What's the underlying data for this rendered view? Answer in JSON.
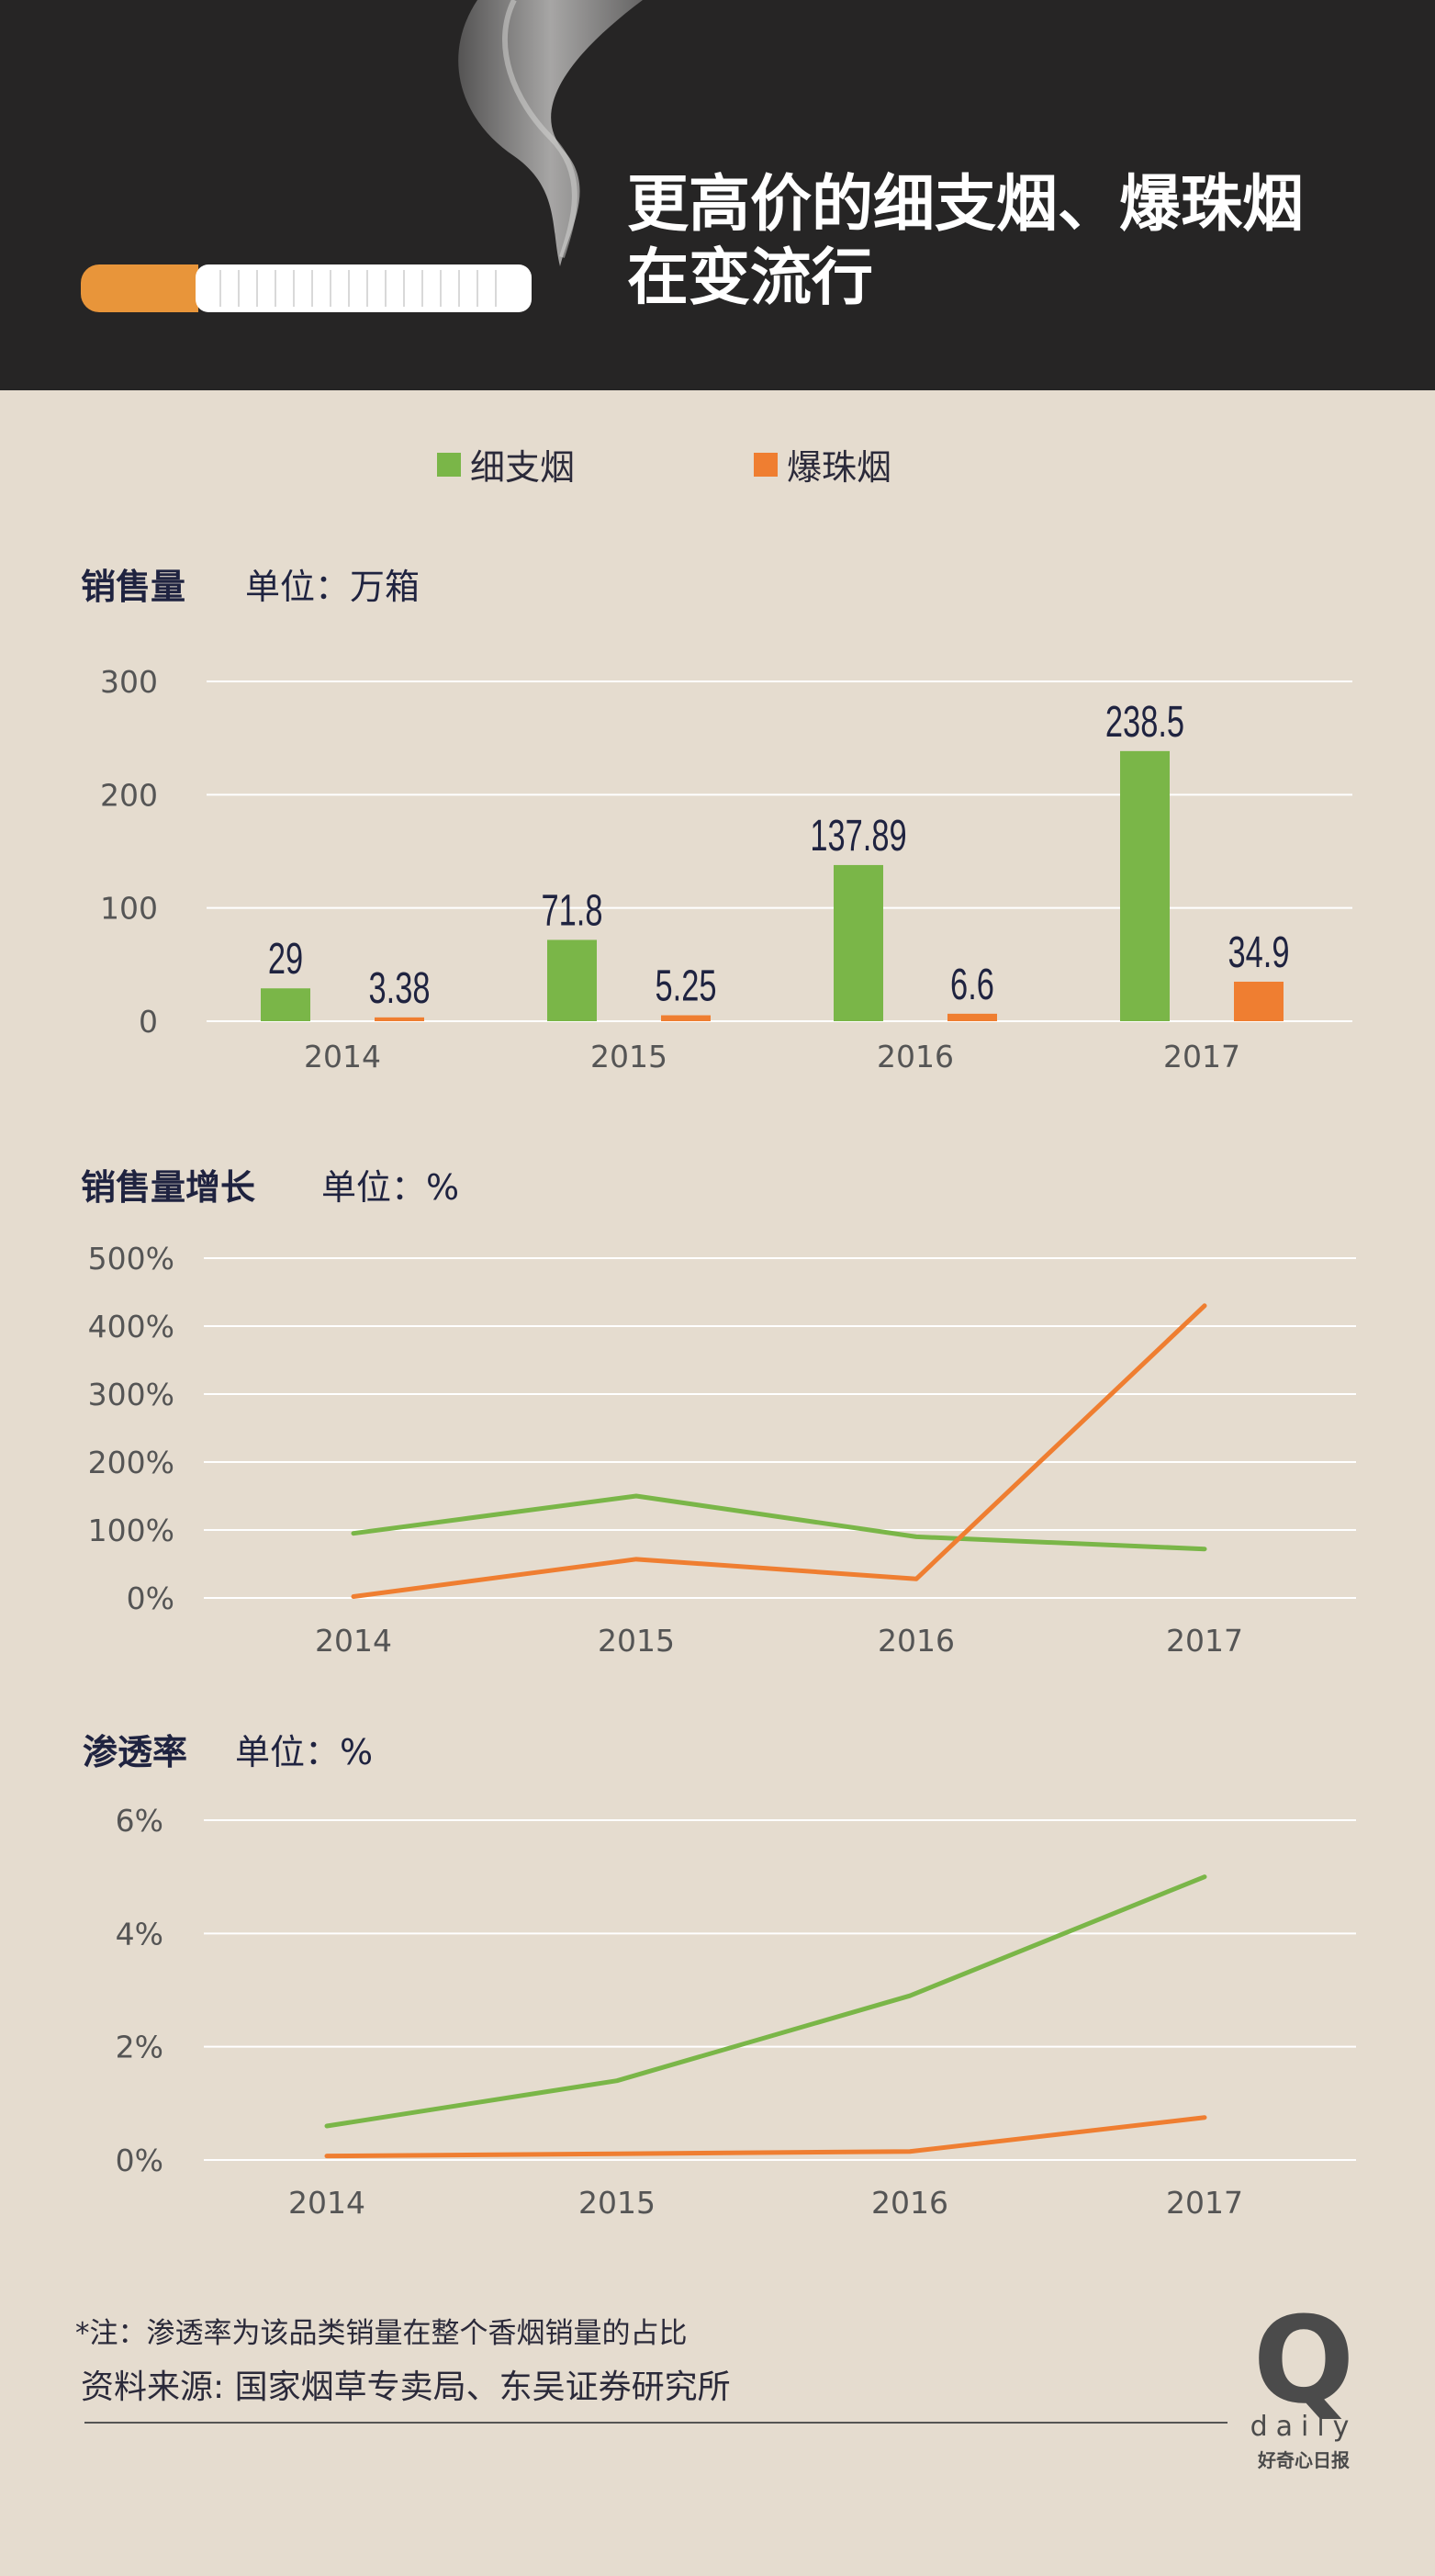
{
  "header": {
    "title_lines": [
      "更高价的细支烟、爆珠烟",
      "在变流行"
    ]
  },
  "legend": [
    {
      "label": "细支烟",
      "color": "#7ab648"
    },
    {
      "label": "爆珠烟",
      "color": "#ef7e31"
    }
  ],
  "sections": {
    "sales": {
      "title": "销售量",
      "unit": "单位：万箱"
    },
    "growth": {
      "title": "销售量增长",
      "unit": "单位：%"
    },
    "penetration": {
      "title": "渗透率",
      "unit": "单位：%"
    }
  },
  "chart_data": [
    {
      "type": "bar",
      "title": "销售量",
      "unit": "单位：万箱",
      "categories": [
        "2014",
        "2015",
        "2016",
        "2017"
      ],
      "ylim": [
        0,
        300
      ],
      "yticks": [
        "0",
        "100",
        "200",
        "300"
      ],
      "grid": true,
      "series": [
        {
          "name": "细支烟",
          "color": "#7ab648",
          "values": [
            29,
            71.8,
            137.89,
            238.5
          ],
          "labels": [
            "29",
            "71.8",
            "137.89",
            "238.5"
          ]
        },
        {
          "name": "爆珠烟",
          "color": "#ef7e31",
          "values": [
            3.38,
            5.25,
            6.6,
            34.9
          ],
          "labels": [
            "3.38",
            "5.25",
            "6.6",
            "34.9"
          ]
        }
      ]
    },
    {
      "type": "line",
      "title": "销售量增长",
      "unit": "单位：%",
      "x": [
        "2014",
        "2015",
        "2016",
        "2017"
      ],
      "ylim": [
        0,
        500
      ],
      "yticks": [
        "0%",
        "100%",
        "200%",
        "300%",
        "400%",
        "500%"
      ],
      "grid": true,
      "series": [
        {
          "name": "细支烟",
          "color": "#7ab648",
          "values": [
            95,
            150,
            90,
            72
          ]
        },
        {
          "name": "爆珠烟",
          "color": "#ef7e31",
          "values": [
            2,
            57,
            28,
            430
          ]
        }
      ]
    },
    {
      "type": "line",
      "title": "渗透率",
      "unit": "单位：%",
      "x": [
        "2014",
        "2015",
        "2016",
        "2017"
      ],
      "ylim": [
        0,
        6
      ],
      "yticks": [
        "0%",
        "2%",
        "4%",
        "6%"
      ],
      "grid": true,
      "series": [
        {
          "name": "细支烟",
          "color": "#7ab648",
          "values": [
            0.6,
            1.4,
            2.9,
            5.0
          ]
        },
        {
          "name": "爆珠烟",
          "color": "#ef7e31",
          "values": [
            0.07,
            0.11,
            0.15,
            0.75
          ]
        }
      ]
    }
  ],
  "footer": {
    "note": "*注：渗透率为该品类销量在整个香烟销量的占比",
    "source": "资料来源: 国家烟草专卖局、东吴证券研究所",
    "logo_letter": "Q",
    "logo_word": "daily",
    "logo_cn": "好奇心日报"
  }
}
